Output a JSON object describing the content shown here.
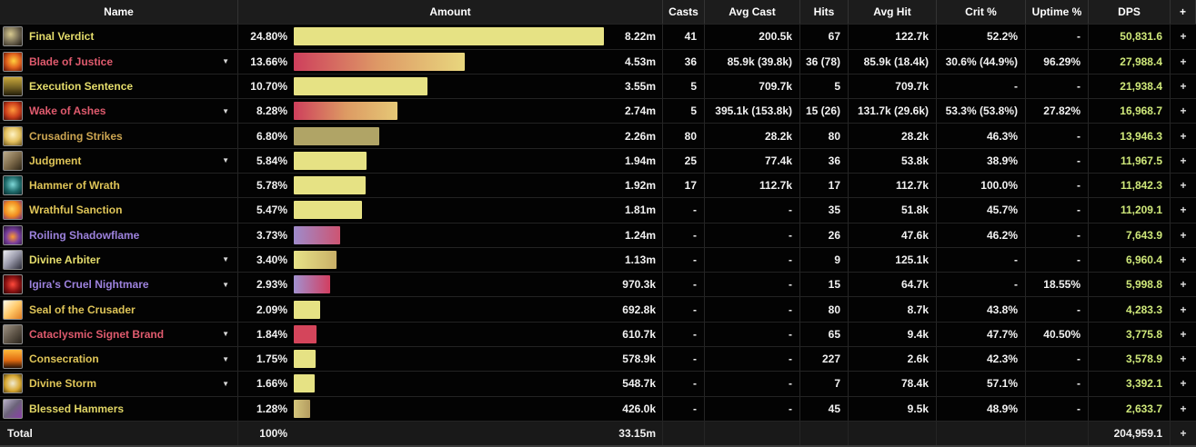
{
  "palette": {
    "header_bg": "#1c1c1c",
    "row_bg": "#030303",
    "total_bg": "#191919",
    "grid_line": "#252525",
    "dps_text": "#cfe87a",
    "name_yellow": "#e5dd6c",
    "name_gold": "#dfc558",
    "name_orange": "#cda652",
    "name_red": "#e05b6e",
    "name_purple": "#9d82dd",
    "bar_yellow": "#e6e284",
    "bar_max_pct": 24.8
  },
  "columns": [
    "Name",
    "Amount",
    "Casts",
    "Avg Cast",
    "Hits",
    "Avg Hit",
    "Crit %",
    "Uptime %",
    "DPS",
    "+"
  ],
  "rows": [
    {
      "name": "Final Verdict",
      "name_color": "#e5dd6c",
      "icon": "final-verdict-icon",
      "expandable": false,
      "pct": "24.80%",
      "pct_value": 24.8,
      "bar_from": "#e6e284",
      "bar_mid": "",
      "bar_to": "#e6e284",
      "amount": "8.22m",
      "casts": "41",
      "avg_cast": "200.5k",
      "hits": "67",
      "avg_hit": "122.7k",
      "crit": "52.2%",
      "uptime": "-",
      "dps": "50,831.6",
      "plus": "+"
    },
    {
      "name": "Blade of Justice",
      "name_color": "#e05b6e",
      "icon": "blade-of-justice-icon",
      "expandable": true,
      "pct": "13.66%",
      "pct_value": 13.66,
      "bar_from": "#ce3f5c",
      "bar_mid": "#de9a66",
      "bar_to": "#e8d77e",
      "amount": "4.53m",
      "casts": "36",
      "avg_cast": "85.9k (39.8k)",
      "hits": "36 (78)",
      "avg_hit": "85.9k (18.4k)",
      "crit": "30.6% (44.9%)",
      "uptime": "96.29%",
      "dps": "27,988.4",
      "plus": "+"
    },
    {
      "name": "Execution Sentence",
      "name_color": "#e5dd6c",
      "icon": "execution-sentence-icon",
      "expandable": false,
      "pct": "10.70%",
      "pct_value": 10.7,
      "bar_from": "#e6e284",
      "bar_mid": "",
      "bar_to": "#e6e284",
      "amount": "3.55m",
      "casts": "5",
      "avg_cast": "709.7k",
      "hits": "5",
      "avg_hit": "709.7k",
      "crit": "-",
      "uptime": "-",
      "dps": "21,938.4",
      "plus": "+"
    },
    {
      "name": "Wake of Ashes",
      "name_color": "#e05b6e",
      "icon": "wake-of-ashes-icon",
      "expandable": true,
      "pct": "8.28%",
      "pct_value": 8.28,
      "bar_from": "#ce3f5c",
      "bar_mid": "#dd9a63",
      "bar_to": "#e5c876",
      "amount": "2.74m",
      "casts": "5",
      "avg_cast": "395.1k (153.8k)",
      "hits": "15 (26)",
      "avg_hit": "131.7k (29.6k)",
      "crit": "53.3% (53.8%)",
      "uptime": "27.82%",
      "dps": "16,968.7",
      "plus": "+"
    },
    {
      "name": "Crusading Strikes",
      "name_color": "#cda652",
      "icon": "crusading-strikes-icon",
      "expandable": false,
      "pct": "6.80%",
      "pct_value": 6.8,
      "bar_from": "#b0a466",
      "bar_mid": "",
      "bar_to": "#b0a466",
      "amount": "2.26m",
      "casts": "80",
      "avg_cast": "28.2k",
      "hits": "80",
      "avg_hit": "28.2k",
      "crit": "46.3%",
      "uptime": "-",
      "dps": "13,946.3",
      "plus": "+"
    },
    {
      "name": "Judgment",
      "name_color": "#dfc558",
      "icon": "judgment-icon",
      "expandable": true,
      "pct": "5.84%",
      "pct_value": 5.84,
      "bar_from": "#e6e284",
      "bar_mid": "",
      "bar_to": "#e6e284",
      "amount": "1.94m",
      "casts": "25",
      "avg_cast": "77.4k",
      "hits": "36",
      "avg_hit": "53.8k",
      "crit": "38.9%",
      "uptime": "-",
      "dps": "11,967.5",
      "plus": "+"
    },
    {
      "name": "Hammer of Wrath",
      "name_color": "#dfc558",
      "icon": "hammer-of-wrath-icon",
      "expandable": false,
      "pct": "5.78%",
      "pct_value": 5.78,
      "bar_from": "#e6e284",
      "bar_mid": "",
      "bar_to": "#e6e284",
      "amount": "1.92m",
      "casts": "17",
      "avg_cast": "112.7k",
      "hits": "17",
      "avg_hit": "112.7k",
      "crit": "100.0%",
      "uptime": "-",
      "dps": "11,842.3",
      "plus": "+"
    },
    {
      "name": "Wrathful Sanction",
      "name_color": "#dfc558",
      "icon": "wrathful-sanction-icon",
      "expandable": false,
      "pct": "5.47%",
      "pct_value": 5.47,
      "bar_from": "#e6e284",
      "bar_mid": "",
      "bar_to": "#e6e284",
      "amount": "1.81m",
      "casts": "-",
      "avg_cast": "-",
      "hits": "35",
      "avg_hit": "51.8k",
      "crit": "45.7%",
      "uptime": "-",
      "dps": "11,209.1",
      "plus": "+"
    },
    {
      "name": "Roiling Shadowflame",
      "name_color": "#9d82dd",
      "icon": "roiling-shadowflame-icon",
      "expandable": false,
      "pct": "3.73%",
      "pct_value": 3.73,
      "bar_from": "#9e8bcb",
      "bar_mid": "",
      "bar_to": "#cd5472",
      "amount": "1.24m",
      "casts": "-",
      "avg_cast": "-",
      "hits": "26",
      "avg_hit": "47.6k",
      "crit": "46.2%",
      "uptime": "-",
      "dps": "7,643.9",
      "plus": "+"
    },
    {
      "name": "Divine Arbiter",
      "name_color": "#e5dd6c",
      "icon": "divine-arbiter-icon",
      "expandable": true,
      "pct": "3.40%",
      "pct_value": 3.4,
      "bar_from": "#e7e388",
      "bar_mid": "",
      "bar_to": "#c9af67",
      "amount": "1.13m",
      "casts": "-",
      "avg_cast": "-",
      "hits": "9",
      "avg_hit": "125.1k",
      "crit": "-",
      "uptime": "-",
      "dps": "6,960.4",
      "plus": "+"
    },
    {
      "name": "Igira's Cruel Nightmare",
      "name_color": "#9d82dd",
      "icon": "igiras-cruel-nightmare-icon",
      "expandable": true,
      "pct": "2.93%",
      "pct_value": 2.93,
      "bar_from": "#a291d0",
      "bar_mid": "",
      "bar_to": "#d23e60",
      "amount": "970.3k",
      "casts": "-",
      "avg_cast": "-",
      "hits": "15",
      "avg_hit": "64.7k",
      "crit": "-",
      "uptime": "18.55%",
      "dps": "5,998.8",
      "plus": "+"
    },
    {
      "name": "Seal of the Crusader",
      "name_color": "#dfc558",
      "icon": "seal-of-the-crusader-icon",
      "expandable": false,
      "pct": "2.09%",
      "pct_value": 2.09,
      "bar_from": "#e6e284",
      "bar_mid": "",
      "bar_to": "#e6e284",
      "amount": "692.8k",
      "casts": "-",
      "avg_cast": "-",
      "hits": "80",
      "avg_hit": "8.7k",
      "crit": "43.8%",
      "uptime": "-",
      "dps": "4,283.3",
      "plus": "+"
    },
    {
      "name": "Cataclysmic Signet Brand",
      "name_color": "#e05b6e",
      "icon": "cataclysmic-signet-brand-icon",
      "expandable": true,
      "pct": "1.84%",
      "pct_value": 1.84,
      "bar_from": "#d4455b",
      "bar_mid": "",
      "bar_to": "#d4455b",
      "amount": "610.7k",
      "casts": "-",
      "avg_cast": "-",
      "hits": "65",
      "avg_hit": "9.4k",
      "crit": "47.7%",
      "uptime": "40.50%",
      "dps": "3,775.8",
      "plus": "+"
    },
    {
      "name": "Consecration",
      "name_color": "#dfc558",
      "icon": "consecration-icon",
      "expandable": true,
      "pct": "1.75%",
      "pct_value": 1.75,
      "bar_from": "#e6e284",
      "bar_mid": "",
      "bar_to": "#e6e284",
      "amount": "578.9k",
      "casts": "-",
      "avg_cast": "-",
      "hits": "227",
      "avg_hit": "2.6k",
      "crit": "42.3%",
      "uptime": "-",
      "dps": "3,578.9",
      "plus": "+"
    },
    {
      "name": "Divine Storm",
      "name_color": "#dfc558",
      "icon": "divine-storm-icon",
      "expandable": true,
      "pct": "1.66%",
      "pct_value": 1.66,
      "bar_from": "#e6e284",
      "bar_mid": "",
      "bar_to": "#e6e284",
      "amount": "548.7k",
      "casts": "-",
      "avg_cast": "-",
      "hits": "7",
      "avg_hit": "78.4k",
      "crit": "57.1%",
      "uptime": "-",
      "dps": "3,392.1",
      "plus": "+"
    },
    {
      "name": "Blessed Hammers",
      "name_color": "#e0d565",
      "icon": "blessed-hammers-icon",
      "expandable": false,
      "pct": "1.28%",
      "pct_value": 1.28,
      "bar_from": "#d4c67c",
      "bar_mid": "",
      "bar_to": "#b49c60",
      "amount": "426.0k",
      "casts": "-",
      "avg_cast": "-",
      "hits": "45",
      "avg_hit": "9.5k",
      "crit": "48.9%",
      "uptime": "-",
      "dps": "2,633.7",
      "plus": "+"
    }
  ],
  "total": {
    "name": "Total",
    "pct": "100%",
    "amount": "33.15m",
    "dps": "204,959.1",
    "plus": "+"
  }
}
